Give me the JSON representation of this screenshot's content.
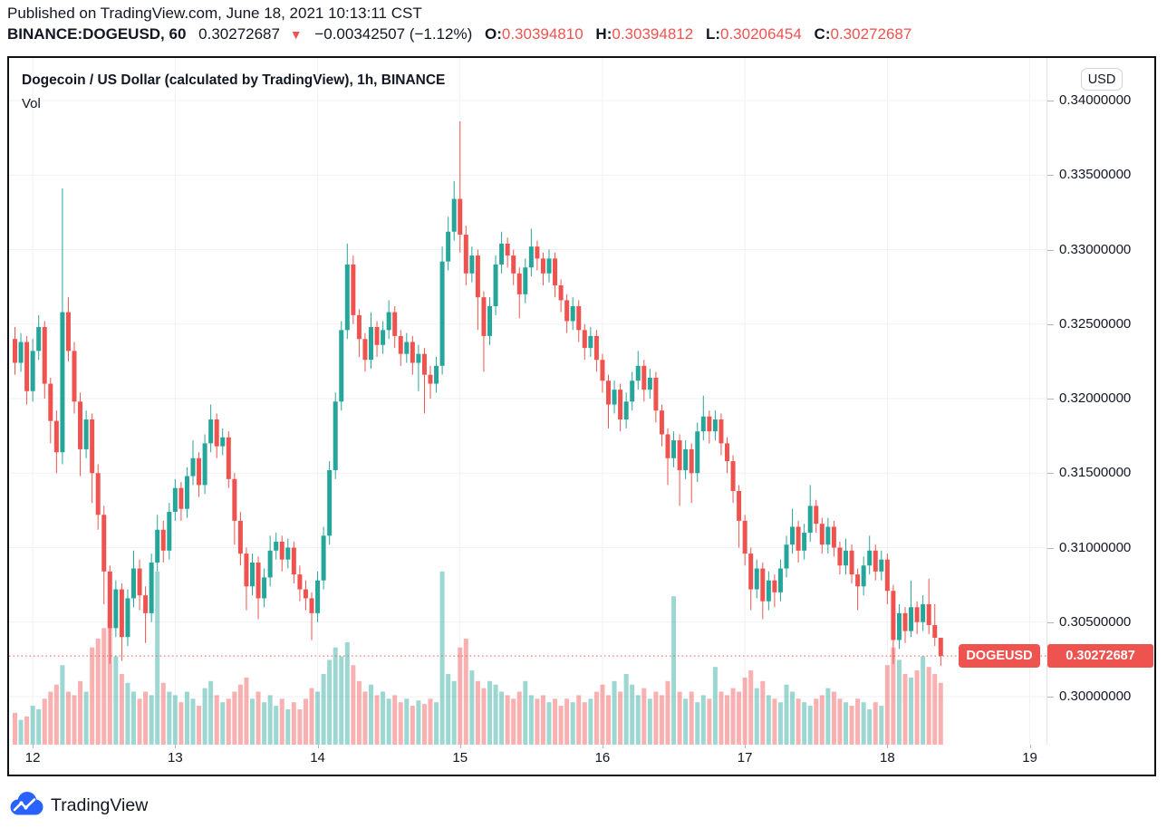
{
  "header": {
    "publish_line": "Published on TradingView.com, June 18, 2021 10:13:11 CST",
    "symbol_interval": "BINANCE:DOGEUSD, 60",
    "last_price": "0.30272687",
    "direction_icon": "▼",
    "change_text": "−0.00342507 (−1.12%)",
    "o_label": "O:",
    "o_value": "0.30394810",
    "h_label": "H:",
    "h_value": "0.30394812",
    "l_label": "L:",
    "l_value": "0.30206454",
    "c_label": "C:",
    "c_value": "0.30272687"
  },
  "chart": {
    "title": "Dogecoin / US Dollar (calculated by TradingView), 1h, BINANCE",
    "indicator_label": "Vol",
    "currency_button": "USD",
    "price_axis_ticks": [
      "0.34000000",
      "0.33500000",
      "0.33000000",
      "0.32500000",
      "0.32000000",
      "0.31500000",
      "0.31000000",
      "0.30500000",
      "0.30000000"
    ],
    "time_axis_labels": [
      {
        "text": "12",
        "idx": 3
      },
      {
        "text": "13",
        "idx": 27
      },
      {
        "text": "14",
        "idx": 51
      },
      {
        "text": "15",
        "idx": 75
      },
      {
        "text": "16",
        "idx": 99
      },
      {
        "text": "17",
        "idx": 123
      },
      {
        "text": "18",
        "idx": 147
      },
      {
        "text": "19",
        "idx": 171
      }
    ],
    "last_price_label": {
      "symbol": "DOGEUSD",
      "price": "0.30272687"
    }
  },
  "footer": {
    "brand": "TradingView"
  },
  "colors": {
    "up": "#26a69a",
    "down": "#ef5350",
    "accent_red": "#ef5350",
    "text": "#131722",
    "grid": "#f0f1f4",
    "brand_blue": "#2962ff"
  },
  "chart_data": {
    "type": "candlestick+volume",
    "symbol": "BINANCE:DOGEUSD",
    "interval": "1h",
    "start_time": "2021-06-11 21:00",
    "end_time": "2021-06-18 10:00",
    "price_unit": 0.0001,
    "volume_scale": "relative_percent_of_max",
    "y_range": [
      0.2985,
      0.3415
    ],
    "note": "candles are [open, high, low, close, volume%] in units of price_unit",
    "candles": [
      [
        3240,
        3248,
        3216,
        3224,
        18
      ],
      [
        3224,
        3244,
        3218,
        3238,
        14
      ],
      [
        3238,
        3242,
        3196,
        3205,
        16
      ],
      [
        3205,
        3240,
        3198,
        3232,
        22
      ],
      [
        3232,
        3256,
        3226,
        3248,
        20
      ],
      [
        3248,
        3252,
        3200,
        3210,
        26
      ],
      [
        3210,
        3214,
        3170,
        3185,
        30
      ],
      [
        3185,
        3192,
        3150,
        3164,
        34
      ],
      [
        3164,
        3341,
        3156,
        3258,
        45
      ],
      [
        3258,
        3268,
        3225,
        3232,
        30
      ],
      [
        3232,
        3238,
        3190,
        3198,
        28
      ],
      [
        3198,
        3204,
        3148,
        3166,
        36
      ],
      [
        3166,
        3192,
        3160,
        3186,
        30
      ],
      [
        3186,
        3190,
        3130,
        3150,
        55
      ],
      [
        3150,
        3156,
        3112,
        3122,
        60
      ],
      [
        3122,
        3128,
        3062,
        3084,
        66
      ],
      [
        3084,
        3088,
        3022,
        3046,
        72
      ],
      [
        3046,
        3078,
        3040,
        3072,
        50
      ],
      [
        3072,
        3076,
        3024,
        3040,
        40
      ],
      [
        3040,
        3072,
        3034,
        3066,
        35
      ],
      [
        3066,
        3098,
        3060,
        3086,
        30
      ],
      [
        3086,
        3092,
        3058,
        3068,
        26
      ],
      [
        3068,
        3074,
        3036,
        3056,
        30
      ],
      [
        3056,
        3096,
        3050,
        3090,
        28
      ],
      [
        3090,
        3122,
        3084,
        3112,
        98
      ],
      [
        3112,
        3118,
        3090,
        3098,
        35
      ],
      [
        3098,
        3130,
        3092,
        3124,
        30
      ],
      [
        3124,
        3146,
        3118,
        3140,
        28
      ],
      [
        3140,
        3144,
        3118,
        3126,
        24
      ],
      [
        3126,
        3154,
        3120,
        3148,
        30
      ],
      [
        3148,
        3172,
        3142,
        3160,
        26
      ],
      [
        3160,
        3164,
        3134,
        3142,
        22
      ],
      [
        3142,
        3176,
        3136,
        3170,
        32
      ],
      [
        3170,
        3196,
        3164,
        3186,
        36
      ],
      [
        3186,
        3190,
        3160,
        3168,
        28
      ],
      [
        3168,
        3180,
        3162,
        3174,
        24
      ],
      [
        3174,
        3178,
        3140,
        3146,
        26
      ],
      [
        3146,
        3150,
        3102,
        3118,
        30
      ],
      [
        3118,
        3124,
        3088,
        3096,
        34
      ],
      [
        3096,
        3100,
        3058,
        3074,
        38
      ],
      [
        3074,
        3096,
        3068,
        3090,
        26
      ],
      [
        3090,
        3094,
        3052,
        3066,
        30
      ],
      [
        3066,
        3086,
        3060,
        3080,
        24
      ],
      [
        3080,
        3108,
        3074,
        3098,
        28
      ],
      [
        3098,
        3110,
        3092,
        3104,
        22
      ],
      [
        3104,
        3108,
        3084,
        3092,
        26
      ],
      [
        3092,
        3106,
        3086,
        3100,
        20
      ],
      [
        3100,
        3104,
        3076,
        3082,
        24
      ],
      [
        3082,
        3088,
        3064,
        3072,
        20
      ],
      [
        3072,
        3078,
        3058,
        3066,
        26
      ],
      [
        3066,
        3070,
        3038,
        3056,
        32
      ],
      [
        3056,
        3084,
        3050,
        3078,
        30
      ],
      [
        3078,
        3114,
        3072,
        3108,
        40
      ],
      [
        3108,
        3158,
        3102,
        3152,
        48
      ],
      [
        3152,
        3204,
        3146,
        3198,
        55
      ],
      [
        3198,
        3252,
        3192,
        3246,
        50
      ],
      [
        3246,
        3304,
        3240,
        3290,
        58
      ],
      [
        3290,
        3296,
        3250,
        3256,
        45
      ],
      [
        3256,
        3260,
        3228,
        3240,
        36
      ],
      [
        3240,
        3244,
        3218,
        3226,
        30
      ],
      [
        3226,
        3258,
        3220,
        3248,
        34
      ],
      [
        3248,
        3252,
        3228,
        3236,
        28
      ],
      [
        3236,
        3252,
        3230,
        3246,
        30
      ],
      [
        3246,
        3266,
        3240,
        3258,
        26
      ],
      [
        3258,
        3262,
        3234,
        3242,
        28
      ],
      [
        3242,
        3246,
        3222,
        3230,
        24
      ],
      [
        3230,
        3244,
        3224,
        3238,
        26
      ],
      [
        3238,
        3242,
        3216,
        3224,
        22
      ],
      [
        3224,
        3236,
        3205,
        3230,
        25
      ],
      [
        3230,
        3234,
        3190,
        3216,
        23
      ],
      [
        3216,
        3222,
        3200,
        3210,
        26
      ],
      [
        3210,
        3228,
        3204,
        3222,
        24
      ],
      [
        3222,
        3302,
        3216,
        3292,
        98
      ],
      [
        3292,
        3322,
        3286,
        3312,
        40
      ],
      [
        3312,
        3346,
        3306,
        3334,
        36
      ],
      [
        3334,
        3386,
        3298,
        3310,
        55
      ],
      [
        3310,
        3316,
        3276,
        3284,
        60
      ],
      [
        3284,
        3302,
        3278,
        3296,
        42
      ],
      [
        3296,
        3300,
        3246,
        3268,
        36
      ],
      [
        3268,
        3272,
        3218,
        3242,
        32
      ],
      [
        3242,
        3268,
        3236,
        3262,
        36
      ],
      [
        3262,
        3296,
        3256,
        3290,
        34
      ],
      [
        3290,
        3312,
        3284,
        3304,
        30
      ],
      [
        3304,
        3308,
        3288,
        3296,
        28
      ],
      [
        3296,
        3300,
        3276,
        3284,
        26
      ],
      [
        3284,
        3288,
        3254,
        3270,
        30
      ],
      [
        3270,
        3294,
        3264,
        3288,
        36
      ],
      [
        3288,
        3314,
        3282,
        3302,
        28
      ],
      [
        3302,
        3306,
        3286,
        3294,
        26
      ],
      [
        3294,
        3298,
        3276,
        3284,
        28
      ],
      [
        3284,
        3300,
        3278,
        3294,
        24
      ],
      [
        3294,
        3298,
        3268,
        3276,
        26
      ],
      [
        3276,
        3280,
        3258,
        3266,
        22
      ],
      [
        3266,
        3270,
        3244,
        3252,
        26
      ],
      [
        3252,
        3268,
        3246,
        3262,
        24
      ],
      [
        3262,
        3266,
        3238,
        3246,
        28
      ],
      [
        3246,
        3250,
        3226,
        3234,
        24
      ],
      [
        3234,
        3248,
        3228,
        3242,
        26
      ],
      [
        3242,
        3246,
        3218,
        3226,
        30
      ],
      [
        3226,
        3230,
        3204,
        3212,
        34
      ],
      [
        3212,
        3216,
        3180,
        3196,
        28
      ],
      [
        3196,
        3212,
        3190,
        3206,
        36
      ],
      [
        3206,
        3210,
        3178,
        3186,
        30
      ],
      [
        3186,
        3204,
        3180,
        3198,
        40
      ],
      [
        3198,
        3218,
        3192,
        3212,
        34
      ],
      [
        3212,
        3232,
        3206,
        3222,
        28
      ],
      [
        3222,
        3226,
        3198,
        3206,
        32
      ],
      [
        3206,
        3220,
        3200,
        3214,
        26
      ],
      [
        3214,
        3218,
        3184,
        3192,
        30
      ],
      [
        3192,
        3196,
        3168,
        3176,
        28
      ],
      [
        3176,
        3180,
        3142,
        3160,
        36
      ],
      [
        3160,
        3178,
        3154,
        3172,
        84
      ],
      [
        3172,
        3176,
        3128,
        3152,
        30
      ],
      [
        3152,
        3172,
        3146,
        3166,
        26
      ],
      [
        3166,
        3170,
        3130,
        3150,
        30
      ],
      [
        3150,
        3184,
        3144,
        3178,
        24
      ],
      [
        3178,
        3202,
        3172,
        3188,
        28
      ],
      [
        3188,
        3192,
        3170,
        3178,
        26
      ],
      [
        3178,
        3192,
        3172,
        3186,
        44
      ],
      [
        3186,
        3190,
        3162,
        3170,
        30
      ],
      [
        3170,
        3174,
        3150,
        3158,
        28
      ],
      [
        3158,
        3162,
        3130,
        3138,
        32
      ],
      [
        3138,
        3142,
        3100,
        3118,
        30
      ],
      [
        3118,
        3122,
        3088,
        3096,
        38
      ],
      [
        3096,
        3100,
        3058,
        3072,
        42
      ],
      [
        3072,
        3092,
        3066,
        3086,
        32
      ],
      [
        3086,
        3090,
        3052,
        3064,
        36
      ],
      [
        3064,
        3084,
        3058,
        3078,
        28
      ],
      [
        3078,
        3082,
        3060,
        3070,
        26
      ],
      [
        3070,
        3092,
        3064,
        3086,
        24
      ],
      [
        3086,
        3108,
        3080,
        3102,
        34
      ],
      [
        3102,
        3126,
        3096,
        3114,
        30
      ],
      [
        3114,
        3118,
        3090,
        3098,
        26
      ],
      [
        3098,
        3116,
        3092,
        3110,
        24
      ],
      [
        3110,
        3142,
        3104,
        3128,
        22
      ],
      [
        3128,
        3132,
        3110,
        3116,
        26
      ],
      [
        3116,
        3120,
        3096,
        3102,
        28
      ],
      [
        3102,
        3120,
        3096,
        3114,
        32
      ],
      [
        3114,
        3118,
        3094,
        3100,
        30
      ],
      [
        3100,
        3104,
        3082,
        3088,
        26
      ],
      [
        3088,
        3106,
        3082,
        3098,
        24
      ],
      [
        3098,
        3102,
        3076,
        3082,
        22
      ],
      [
        3082,
        3086,
        3058,
        3074,
        26
      ],
      [
        3074,
        3094,
        3068,
        3088,
        24
      ],
      [
        3088,
        3108,
        3082,
        3098,
        20
      ],
      [
        3098,
        3102,
        3078,
        3084,
        24
      ],
      [
        3084,
        3098,
        3078,
        3092,
        22
      ],
      [
        3092,
        3096,
        3062,
        3071,
        45
      ],
      [
        3071,
        3075,
        3022,
        3038,
        55
      ],
      [
        3038,
        3062,
        3032,
        3056,
        48
      ],
      [
        3056,
        3060,
        3036,
        3044,
        40
      ],
      [
        3044,
        3078,
        3040,
        3060,
        38
      ],
      [
        3060,
        3064,
        3042,
        3050,
        42
      ],
      [
        3050,
        3068,
        3044,
        3062,
        50
      ],
      [
        3062,
        3079,
        3042,
        3048,
        44
      ],
      [
        3048,
        3062,
        3034,
        3039.5,
        40
      ],
      [
        3039.5,
        3039.5,
        3020.6,
        3027.3,
        35
      ]
    ]
  }
}
